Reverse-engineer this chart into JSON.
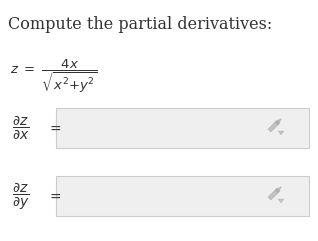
{
  "title": "Compute the partial derivatives:",
  "title_fontsize": 11.5,
  "title_color": "#333333",
  "formula_fontsize": 9.5,
  "label_fontsize": 10,
  "equals_fontsize": 10,
  "box_facecolor": "#efefef",
  "box_edgecolor": "#cccccc",
  "pencil_color": "#aaaaaa",
  "arrow_color": "#aaaaaa",
  "bg_color": "#ffffff",
  "fig_w": 3.18,
  "fig_h": 2.41,
  "dpi": 100
}
